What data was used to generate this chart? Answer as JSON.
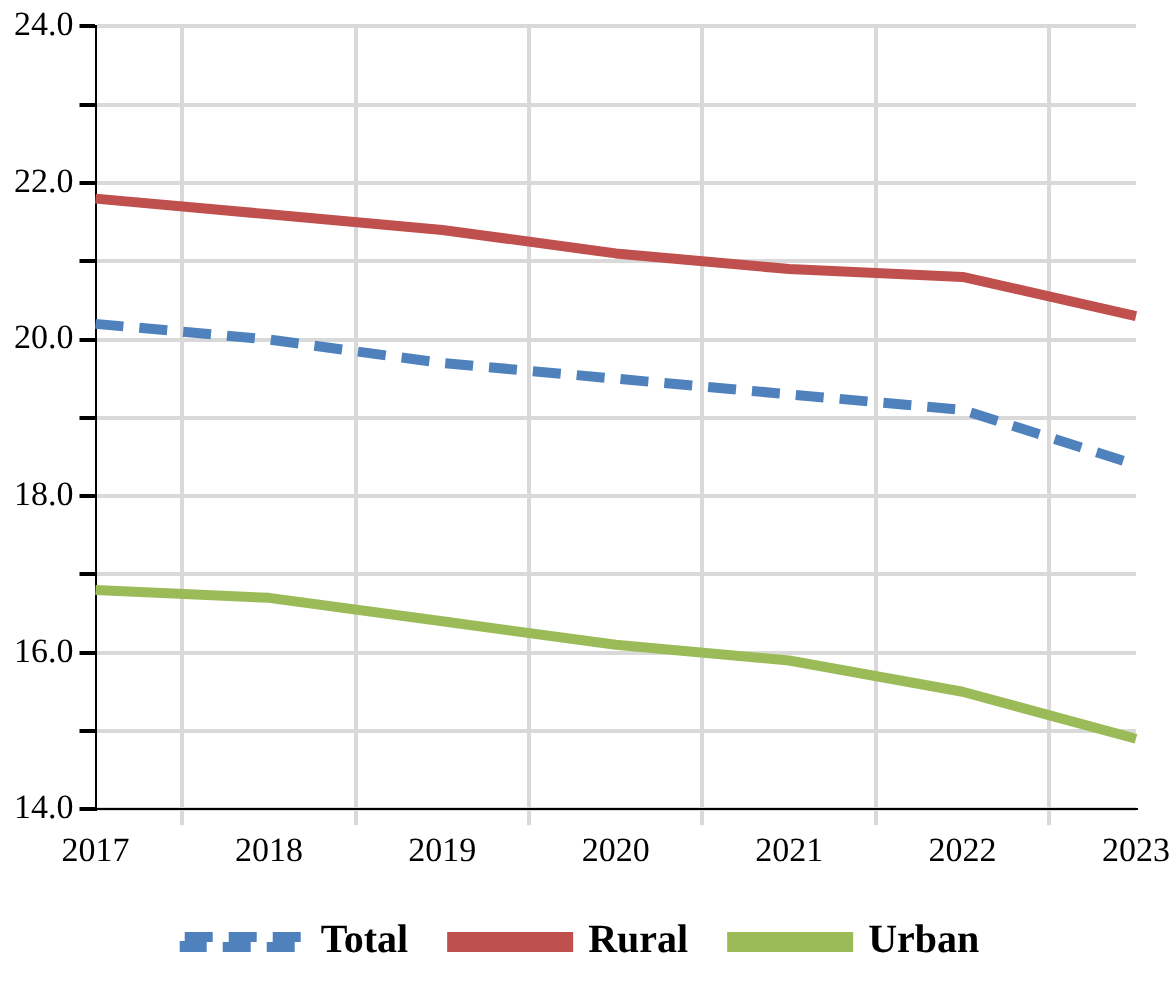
{
  "chart_data": {
    "type": "line",
    "categories": [
      "2017",
      "2018",
      "2019",
      "2020",
      "2021",
      "2022",
      "2023"
    ],
    "series": [
      {
        "name": "Total",
        "color": "#4f81bd",
        "line_style": "dashed",
        "values": [
          20.2,
          20.0,
          19.7,
          19.5,
          19.3,
          19.1,
          18.4
        ]
      },
      {
        "name": "Rural",
        "color": "#c0504d",
        "line_style": "solid",
        "values": [
          21.8,
          21.6,
          21.4,
          21.1,
          20.9,
          20.8,
          20.3
        ]
      },
      {
        "name": "Urban",
        "color": "#9bbb59",
        "line_style": "solid",
        "values": [
          16.8,
          16.7,
          16.4,
          16.1,
          15.9,
          15.5,
          14.9
        ]
      }
    ],
    "ylim": [
      14,
      24
    ],
    "yticks": [
      {
        "value": 14,
        "label": "14.0"
      },
      {
        "value": 15,
        "label": null
      },
      {
        "value": 16,
        "label": "16.0"
      },
      {
        "value": 17,
        "label": null
      },
      {
        "value": 18,
        "label": "18.0"
      },
      {
        "value": 19,
        "label": null
      },
      {
        "value": 20,
        "label": "20.0"
      },
      {
        "value": 21,
        "label": null
      },
      {
        "value": 22,
        "label": "22.0"
      },
      {
        "value": 23,
        "label": null
      },
      {
        "value": 24,
        "label": "24.0"
      }
    ],
    "grid": true,
    "legend": "bottom",
    "marker": "none"
  }
}
